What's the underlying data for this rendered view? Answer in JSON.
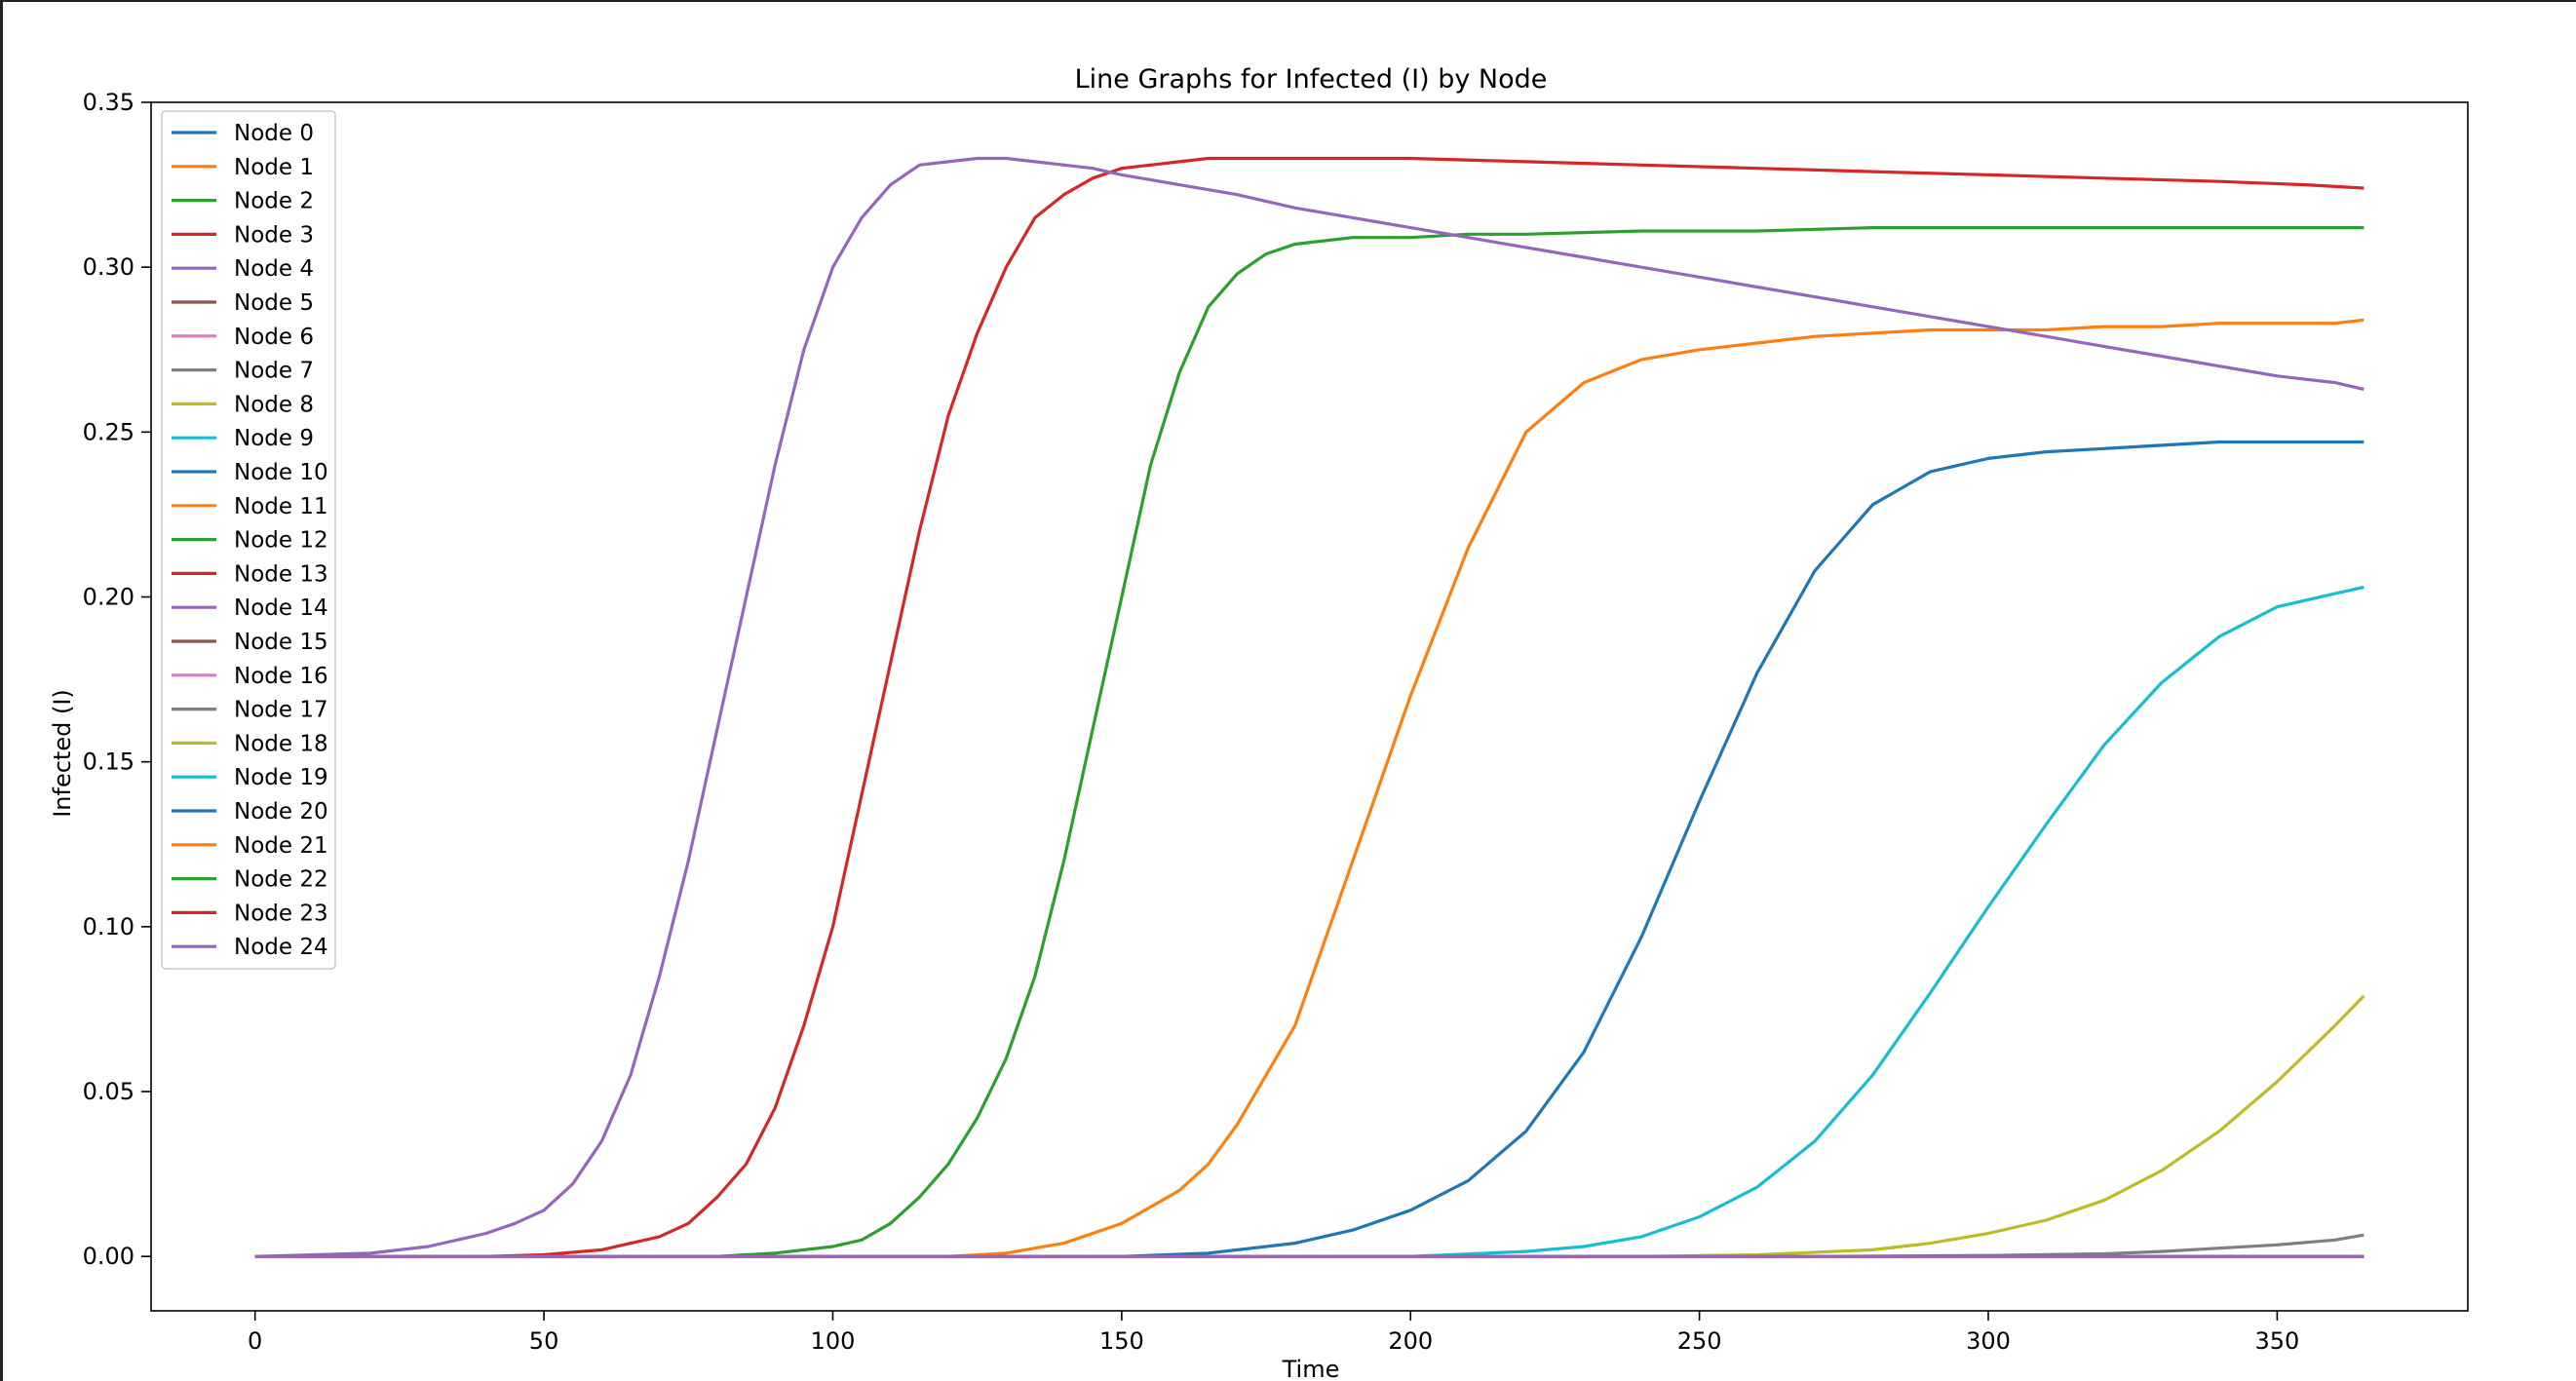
{
  "chart_data": {
    "type": "line",
    "title": "Line Graphs for Infected (I) by Node",
    "xlabel": "Time",
    "ylabel": "Infected (I)",
    "xlim": [
      -18,
      383
    ],
    "ylim": [
      -0.0165,
      0.35
    ],
    "x_ticks": [
      0,
      50,
      100,
      150,
      200,
      250,
      300,
      350
    ],
    "y_ticks": [
      0.0,
      0.05,
      0.1,
      0.15,
      0.2,
      0.25,
      0.3,
      0.35
    ],
    "x_tick_labels": [
      "0",
      "50",
      "100",
      "150",
      "200",
      "250",
      "300",
      "350"
    ],
    "y_tick_labels": [
      "0.00",
      "0.05",
      "0.10",
      "0.15",
      "0.20",
      "0.25",
      "0.30",
      "0.35"
    ],
    "legend_position": "top-left",
    "grid": false,
    "series": [
      {
        "name": "Node 0",
        "color": "#1f77b4",
        "points": [
          [
            0,
            0
          ],
          [
            365,
            0
          ]
        ]
      },
      {
        "name": "Node 1",
        "color": "#ff7f0e",
        "points": [
          [
            0,
            0
          ],
          [
            365,
            0
          ]
        ]
      },
      {
        "name": "Node 2",
        "color": "#2ca02c",
        "points": [
          [
            0,
            0
          ],
          [
            365,
            0
          ]
        ]
      },
      {
        "name": "Node 3",
        "color": "#d62728",
        "points": [
          [
            0,
            0
          ],
          [
            365,
            0
          ]
        ]
      },
      {
        "name": "Node 4",
        "color": "#9467bd",
        "points": [
          [
            0,
            0
          ],
          [
            365,
            0
          ]
        ]
      },
      {
        "name": "Node 5",
        "color": "#8c564b",
        "points": [
          [
            0,
            0
          ],
          [
            365,
            0
          ]
        ]
      },
      {
        "name": "Node 6",
        "color": "#e377c2",
        "points": [
          [
            0,
            0
          ],
          [
            365,
            0
          ]
        ]
      },
      {
        "name": "Node 7",
        "color": "#7f7f7f",
        "points": [
          [
            0,
            0
          ],
          [
            270,
            0
          ],
          [
            300,
            0.0003
          ],
          [
            320,
            0.0008
          ],
          [
            330,
            0.0015
          ],
          [
            340,
            0.0025
          ],
          [
            350,
            0.0035
          ],
          [
            360,
            0.005
          ],
          [
            365,
            0.0065
          ]
        ]
      },
      {
        "name": "Node 8",
        "color": "#bcbd22",
        "points": [
          [
            0,
            0
          ],
          [
            240,
            0
          ],
          [
            260,
            0.0005
          ],
          [
            280,
            0.002
          ],
          [
            290,
            0.004
          ],
          [
            300,
            0.007
          ],
          [
            310,
            0.011
          ],
          [
            320,
            0.017
          ],
          [
            330,
            0.026
          ],
          [
            340,
            0.038
          ],
          [
            350,
            0.053
          ],
          [
            360,
            0.07
          ],
          [
            365,
            0.079
          ]
        ]
      },
      {
        "name": "Node 9",
        "color": "#17becf",
        "points": [
          [
            0,
            0
          ],
          [
            200,
            0
          ],
          [
            220,
            0.0015
          ],
          [
            230,
            0.003
          ],
          [
            240,
            0.006
          ],
          [
            250,
            0.012
          ],
          [
            260,
            0.021
          ],
          [
            270,
            0.035
          ],
          [
            280,
            0.055
          ],
          [
            290,
            0.08
          ],
          [
            300,
            0.106
          ],
          [
            310,
            0.131
          ],
          [
            320,
            0.155
          ],
          [
            330,
            0.174
          ],
          [
            340,
            0.188
          ],
          [
            350,
            0.197
          ],
          [
            360,
            0.201
          ],
          [
            365,
            0.203
          ]
        ]
      },
      {
        "name": "Node 10",
        "color": "#1f77b4",
        "points": [
          [
            0,
            0
          ],
          [
            150,
            0
          ],
          [
            165,
            0.001
          ],
          [
            180,
            0.004
          ],
          [
            190,
            0.008
          ],
          [
            200,
            0.014
          ],
          [
            210,
            0.023
          ],
          [
            220,
            0.038
          ],
          [
            230,
            0.062
          ],
          [
            240,
            0.097
          ],
          [
            250,
            0.138
          ],
          [
            260,
            0.177
          ],
          [
            270,
            0.208
          ],
          [
            280,
            0.228
          ],
          [
            290,
            0.238
          ],
          [
            300,
            0.242
          ],
          [
            310,
            0.244
          ],
          [
            320,
            0.245
          ],
          [
            330,
            0.246
          ],
          [
            340,
            0.247
          ],
          [
            350,
            0.247
          ],
          [
            365,
            0.247
          ]
        ]
      },
      {
        "name": "Node 11",
        "color": "#ff7f0e",
        "points": [
          [
            0,
            0
          ],
          [
            120,
            0
          ],
          [
            130,
            0.001
          ],
          [
            140,
            0.004
          ],
          [
            150,
            0.01
          ],
          [
            160,
            0.02
          ],
          [
            165,
            0.028
          ],
          [
            170,
            0.04
          ],
          [
            180,
            0.07
          ],
          [
            190,
            0.12
          ],
          [
            200,
            0.17
          ],
          [
            210,
            0.215
          ],
          [
            220,
            0.25
          ],
          [
            230,
            0.265
          ],
          [
            240,
            0.272
          ],
          [
            250,
            0.275
          ],
          [
            260,
            0.277
          ],
          [
            270,
            0.279
          ],
          [
            280,
            0.28
          ],
          [
            290,
            0.281
          ],
          [
            300,
            0.281
          ],
          [
            310,
            0.281
          ],
          [
            320,
            0.282
          ],
          [
            330,
            0.282
          ],
          [
            340,
            0.283
          ],
          [
            350,
            0.283
          ],
          [
            360,
            0.283
          ],
          [
            365,
            0.284
          ]
        ]
      },
      {
        "name": "Node 12",
        "color": "#2ca02c",
        "points": [
          [
            0,
            0
          ],
          [
            80,
            0
          ],
          [
            90,
            0.001
          ],
          [
            100,
            0.003
          ],
          [
            105,
            0.005
          ],
          [
            110,
            0.01
          ],
          [
            115,
            0.018
          ],
          [
            120,
            0.028
          ],
          [
            125,
            0.042
          ],
          [
            130,
            0.06
          ],
          [
            135,
            0.085
          ],
          [
            140,
            0.12
          ],
          [
            145,
            0.16
          ],
          [
            150,
            0.2
          ],
          [
            155,
            0.24
          ],
          [
            160,
            0.268
          ],
          [
            165,
            0.288
          ],
          [
            170,
            0.298
          ],
          [
            175,
            0.304
          ],
          [
            180,
            0.307
          ],
          [
            190,
            0.309
          ],
          [
            200,
            0.309
          ],
          [
            210,
            0.31
          ],
          [
            220,
            0.31
          ],
          [
            240,
            0.311
          ],
          [
            260,
            0.311
          ],
          [
            280,
            0.312
          ],
          [
            300,
            0.312
          ],
          [
            320,
            0.312
          ],
          [
            340,
            0.312
          ],
          [
            365,
            0.312
          ]
        ]
      },
      {
        "name": "Node 13",
        "color": "#d62728",
        "points": [
          [
            0,
            0
          ],
          [
            40,
            0
          ],
          [
            50,
            0.0005
          ],
          [
            60,
            0.002
          ],
          [
            70,
            0.006
          ],
          [
            75,
            0.01
          ],
          [
            80,
            0.018
          ],
          [
            85,
            0.028
          ],
          [
            90,
            0.045
          ],
          [
            95,
            0.07
          ],
          [
            100,
            0.1
          ],
          [
            105,
            0.14
          ],
          [
            110,
            0.18
          ],
          [
            115,
            0.22
          ],
          [
            120,
            0.255
          ],
          [
            125,
            0.28
          ],
          [
            130,
            0.3
          ],
          [
            135,
            0.315
          ],
          [
            140,
            0.322
          ],
          [
            145,
            0.327
          ],
          [
            150,
            0.33
          ],
          [
            155,
            0.331
          ],
          [
            160,
            0.332
          ],
          [
            165,
            0.333
          ],
          [
            175,
            0.333
          ],
          [
            185,
            0.333
          ],
          [
            200,
            0.333
          ],
          [
            220,
            0.332
          ],
          [
            240,
            0.331
          ],
          [
            260,
            0.33
          ],
          [
            280,
            0.329
          ],
          [
            300,
            0.328
          ],
          [
            320,
            0.327
          ],
          [
            340,
            0.326
          ],
          [
            355,
            0.325
          ],
          [
            365,
            0.324
          ]
        ]
      },
      {
        "name": "Node 14",
        "color": "#9467bd",
        "points": [
          [
            0,
            0
          ],
          [
            20,
            0.001
          ],
          [
            30,
            0.003
          ],
          [
            40,
            0.007
          ],
          [
            45,
            0.01
          ],
          [
            50,
            0.014
          ],
          [
            55,
            0.022
          ],
          [
            60,
            0.035
          ],
          [
            65,
            0.055
          ],
          [
            70,
            0.085
          ],
          [
            75,
            0.12
          ],
          [
            80,
            0.16
          ],
          [
            85,
            0.2
          ],
          [
            90,
            0.24
          ],
          [
            95,
            0.275
          ],
          [
            100,
            0.3
          ],
          [
            105,
            0.315
          ],
          [
            110,
            0.325
          ],
          [
            115,
            0.331
          ],
          [
            120,
            0.332
          ],
          [
            125,
            0.333
          ],
          [
            130,
            0.333
          ],
          [
            135,
            0.332
          ],
          [
            140,
            0.331
          ],
          [
            145,
            0.33
          ],
          [
            150,
            0.328
          ],
          [
            160,
            0.325
          ],
          [
            170,
            0.322
          ],
          [
            180,
            0.318
          ],
          [
            190,
            0.315
          ],
          [
            200,
            0.312
          ],
          [
            210,
            0.309
          ],
          [
            220,
            0.306
          ],
          [
            230,
            0.303
          ],
          [
            240,
            0.3
          ],
          [
            250,
            0.297
          ],
          [
            260,
            0.294
          ],
          [
            270,
            0.291
          ],
          [
            280,
            0.288
          ],
          [
            290,
            0.285
          ],
          [
            300,
            0.282
          ],
          [
            310,
            0.279
          ],
          [
            320,
            0.276
          ],
          [
            330,
            0.273
          ],
          [
            340,
            0.27
          ],
          [
            350,
            0.267
          ],
          [
            360,
            0.265
          ],
          [
            365,
            0.263
          ]
        ]
      },
      {
        "name": "Node 15",
        "color": "#8c564b",
        "points": [
          [
            0,
            0
          ],
          [
            365,
            0
          ]
        ]
      },
      {
        "name": "Node 16",
        "color": "#e377c2",
        "points": [
          [
            0,
            0
          ],
          [
            365,
            0
          ]
        ]
      },
      {
        "name": "Node 17",
        "color": "#7f7f7f",
        "points": [
          [
            0,
            0
          ],
          [
            365,
            0
          ]
        ]
      },
      {
        "name": "Node 18",
        "color": "#bcbd22",
        "points": [
          [
            0,
            0
          ],
          [
            365,
            0
          ]
        ]
      },
      {
        "name": "Node 19",
        "color": "#17becf",
        "points": [
          [
            0,
            0
          ],
          [
            365,
            0
          ]
        ]
      },
      {
        "name": "Node 20",
        "color": "#1f77b4",
        "points": [
          [
            0,
            0
          ],
          [
            365,
            0
          ]
        ]
      },
      {
        "name": "Node 21",
        "color": "#ff7f0e",
        "points": [
          [
            0,
            0
          ],
          [
            365,
            0
          ]
        ]
      },
      {
        "name": "Node 22",
        "color": "#2ca02c",
        "points": [
          [
            0,
            0
          ],
          [
            365,
            0
          ]
        ]
      },
      {
        "name": "Node 23",
        "color": "#d62728",
        "points": [
          [
            0,
            0
          ],
          [
            365,
            0
          ]
        ]
      },
      {
        "name": "Node 24",
        "color": "#9467bd",
        "points": [
          [
            0,
            0
          ],
          [
            365,
            0
          ]
        ]
      }
    ]
  }
}
